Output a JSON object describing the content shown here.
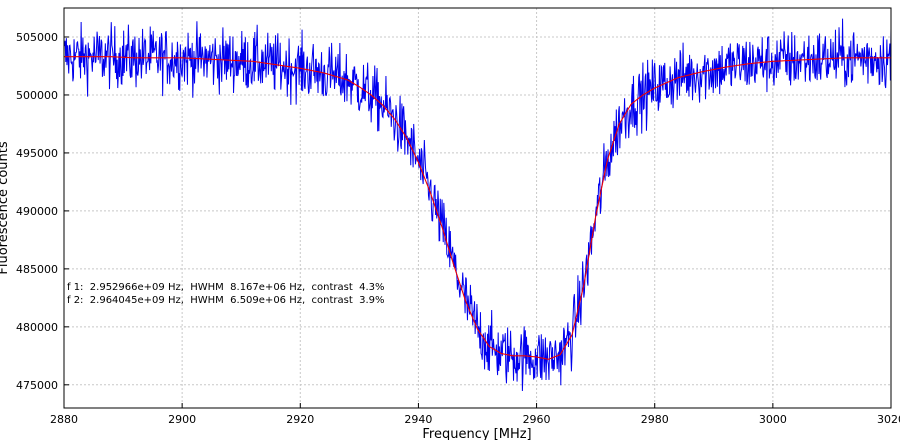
{
  "chart_data": {
    "type": "line",
    "title": "",
    "xlabel": "Frequency [MHz]",
    "ylabel": "Fluorescence counts",
    "xlim": [
      2880,
      3020
    ],
    "ylim": [
      473000,
      507500
    ],
    "x_ticks": [
      2880,
      2900,
      2920,
      2940,
      2960,
      2980,
      3000,
      3020
    ],
    "y_ticks": [
      475000,
      480000,
      485000,
      490000,
      495000,
      500000,
      505000
    ],
    "grid": true,
    "legend": "none",
    "annotations": [
      "f 1:  2.952966e+09 Hz,  HWHM  8.167e+06 Hz,  contrast  4.3%",
      "f 2:  2.964045e+09 Hz,  HWHM  6.509e+06 Hz,  contrast  3.9%"
    ],
    "series": [
      {
        "kind": "noisy-data",
        "color": "#0000ee",
        "x": [
          2880,
          2884,
          2888,
          2892,
          2896,
          2900,
          2904,
          2908,
          2912,
          2916,
          2920,
          2924,
          2928,
          2930,
          2932,
          2934,
          2936,
          2938,
          2940,
          2942,
          2944,
          2946,
          2948,
          2950,
          2952,
          2954,
          2956,
          2958,
          2960,
          2962,
          2964,
          2966,
          2968,
          2970,
          2972,
          2974,
          2976,
          2978,
          2980,
          2984,
          2988,
          2992,
          2996,
          3000,
          3004,
          3008,
          3012,
          3016,
          3020
        ],
        "y": [
          503300,
          503300,
          503300,
          503200,
          503200,
          503200,
          503100,
          503000,
          502900,
          502600,
          502300,
          501900,
          501300,
          500700,
          500000,
          499100,
          497900,
          496300,
          494200,
          491600,
          488600,
          485300,
          482200,
          479800,
          478300,
          477700,
          477500,
          477500,
          477400,
          477200,
          477600,
          479300,
          483600,
          489500,
          494400,
          497500,
          499200,
          500000,
          500600,
          501500,
          502000,
          502400,
          502700,
          502900,
          503000,
          503100,
          503200,
          503200,
          503200
        ]
      },
      {
        "kind": "fit",
        "color": "#ee0000",
        "x": [
          2880,
          2884,
          2888,
          2892,
          2896,
          2900,
          2904,
          2908,
          2912,
          2916,
          2920,
          2924,
          2928,
          2930,
          2932,
          2934,
          2936,
          2938,
          2940,
          2942,
          2944,
          2946,
          2948,
          2950,
          2952,
          2954,
          2956,
          2958,
          2960,
          2962,
          2964,
          2966,
          2968,
          2970,
          2972,
          2974,
          2976,
          2978,
          2980,
          2984,
          2988,
          2992,
          2996,
          3000,
          3004,
          3008,
          3012,
          3016,
          3020
        ],
        "y": [
          503300,
          503300,
          503300,
          503200,
          503200,
          503200,
          503100,
          503000,
          502900,
          502600,
          502300,
          501900,
          501300,
          500700,
          500000,
          499100,
          497900,
          496300,
          494200,
          491600,
          488600,
          485300,
          482200,
          479800,
          478300,
          477700,
          477500,
          477500,
          477400,
          477200,
          477600,
          479300,
          483600,
          489500,
          494400,
          497500,
          499200,
          500000,
          500600,
          501500,
          502000,
          502400,
          502700,
          502900,
          503000,
          503100,
          503200,
          503200,
          503200
        ]
      }
    ]
  }
}
